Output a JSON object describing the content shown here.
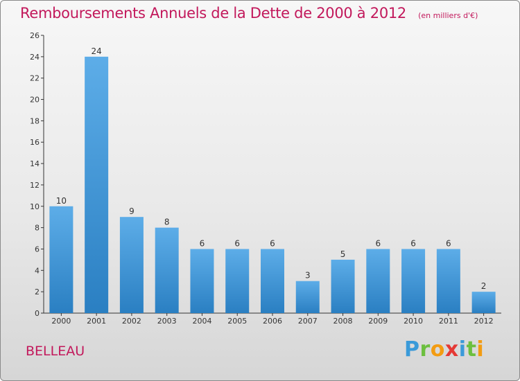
{
  "header": {
    "title": "Remboursements Annuels de la Dette de 2000 à 2012",
    "unit": "(en milliers d'€)"
  },
  "commune": "BELLEAU",
  "logo": {
    "text": "Proxiti",
    "letters": [
      {
        "char": "P",
        "color": "#3a9ad9"
      },
      {
        "char": "r",
        "color": "#6cbf3f"
      },
      {
        "char": "o",
        "color": "#f39c12"
      },
      {
        "char": "x",
        "color": "#e53935"
      },
      {
        "char": "i",
        "color": "#3a9ad9"
      },
      {
        "char": "t",
        "color": "#6cbf3f"
      },
      {
        "char": "i",
        "color": "#f39c12"
      }
    ]
  },
  "colors": {
    "accent": "#c2185b",
    "bar_top": "#5dade8",
    "bar_bottom": "#2a7fc2",
    "axis": "#333333",
    "text": "#333333"
  },
  "chart_data": {
    "type": "bar",
    "categories": [
      "2000",
      "2001",
      "2002",
      "2003",
      "2004",
      "2005",
      "2006",
      "2007",
      "2008",
      "2009",
      "2010",
      "2011",
      "2012"
    ],
    "values": [
      10,
      24,
      9,
      8,
      6,
      6,
      6,
      3,
      5,
      6,
      6,
      6,
      2
    ],
    "ylim": [
      0,
      26
    ],
    "yticks": [
      0,
      2,
      4,
      6,
      8,
      10,
      12,
      14,
      16,
      18,
      20,
      22,
      24,
      26
    ],
    "grid": false,
    "data_labels": true
  }
}
